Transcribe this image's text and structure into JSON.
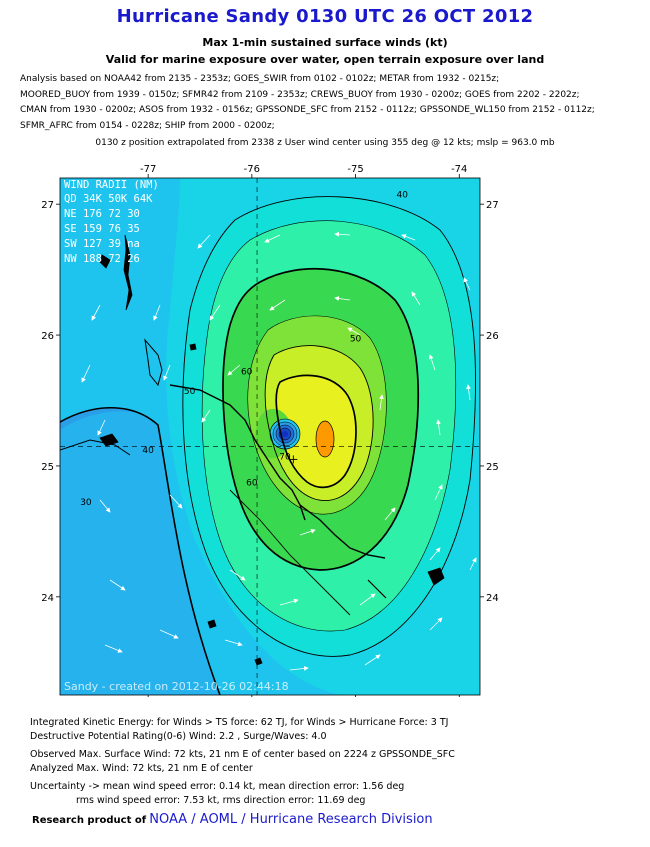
{
  "header": {
    "title": "Hurricane Sandy 0130 UTC 26 OCT 2012",
    "subtitle1": "Max 1-min sustained surface winds (kt)",
    "subtitle2": "Valid for marine exposure over water, open terrain exposure over land",
    "analysis_lines": [
      "Analysis based on NOAA42 from 2135 - 2353z; GOES_SWIR from 0102 - 0102z; METAR from 1932 - 0215z;",
      "MOORED_BUOY from 1939 - 0150z; SFMR42 from 2109 - 2353z; CREWS_BUOY from 1930 - 0200z; GOES from 2202 - 2202z;",
      "CMAN from 1930 - 0200z; ASOS from 1932 - 0156z; GPSSONDE_SFC from 2152 - 0112z; GPSSONDE_WL150 from 2152 - 0112z;",
      "SFMR_AFRC from 0154 - 0228z; SHIP from 2000 - 0200z;"
    ],
    "position_line": "0130 z position extrapolated from 2338 z User wind center using 355 deg @ 12 kts; mslp = 963.0 mb"
  },
  "chart_data": {
    "type": "heatmap",
    "x_ticks": [
      "-77",
      "-76",
      "-75",
      "-74"
    ],
    "x_tick_values": [
      -77,
      -76,
      -75,
      -74
    ],
    "y_ticks": [
      "27",
      "26",
      "25",
      "24"
    ],
    "y_tick_values": [
      27,
      26,
      25,
      24
    ],
    "xlim": [
      -77.85,
      -73.8
    ],
    "ylim": [
      23.25,
      27.2
    ],
    "center": {
      "lon": -75.95,
      "lat": 25.15
    },
    "max_wind_location": {
      "lon": -75.6,
      "lat": 25.05
    },
    "contour_labels": [
      {
        "text": "30",
        "lon": -77.6,
        "lat": 24.7
      },
      {
        "text": "40",
        "lon": -77.0,
        "lat": 25.1
      },
      {
        "text": "40",
        "lon": -74.55,
        "lat": 27.05
      },
      {
        "text": "50",
        "lon": -76.6,
        "lat": 25.55
      },
      {
        "text": "50",
        "lon": -75.0,
        "lat": 25.95
      },
      {
        "text": "60",
        "lon": -76.05,
        "lat": 25.7
      },
      {
        "text": "60",
        "lon": -76.0,
        "lat": 24.85
      },
      {
        "text": "70",
        "lon": -75.68,
        "lat": 25.05
      }
    ],
    "wind_radii": {
      "title": "WIND RADII (NM)",
      "header": [
        "QD",
        "34K",
        "50K",
        "64K"
      ],
      "rows": [
        [
          "NE",
          "176",
          "72",
          "30"
        ],
        [
          "SE",
          "159",
          "76",
          "35"
        ],
        [
          "SW",
          "127",
          "39",
          "na"
        ],
        [
          "NW",
          "188",
          "72",
          "26"
        ]
      ]
    },
    "credit": "Sandy - created on 2012-10-26 02:44:18",
    "colors": {
      "bg_low": "#2a9fe8",
      "level_30": "#1fc4ee",
      "level_40": "#12e0d8",
      "level_45": "#2ef0a8",
      "level_50": "#40d860",
      "level_55": "#22cc22",
      "level_60": "#a8ec2a",
      "level_65": "#e8f020",
      "level_70": "#ff9900",
      "eye": "#1030c0",
      "land": "#000000"
    }
  },
  "footer": {
    "ike": "Integrated Kinetic Energy: for Winds > TS force: 62 TJ, for Winds > Hurricane Force: 3 TJ",
    "dpr": "Destructive Potential Rating(0-6)  Wind: 2.2 , Surge/Waves: 4.0",
    "obs_max": "Observed Max. Surface Wind: 72 kts, 21 nm E of center based on 2224 z GPSSONDE_SFC",
    "ana_max": "Analyzed Max. Wind: 72 kts, 21 nm  E of center",
    "unc1": "Uncertainty -> mean wind speed error: 0.14 kt, mean direction error: 1.56 deg",
    "unc2": "rms wind speed error: 7.53 kt, rms direction error: 11.69 deg",
    "research_prefix": "Research product of",
    "research_org": "NOAA  /  AOML  /  Hurricane Research Division"
  }
}
